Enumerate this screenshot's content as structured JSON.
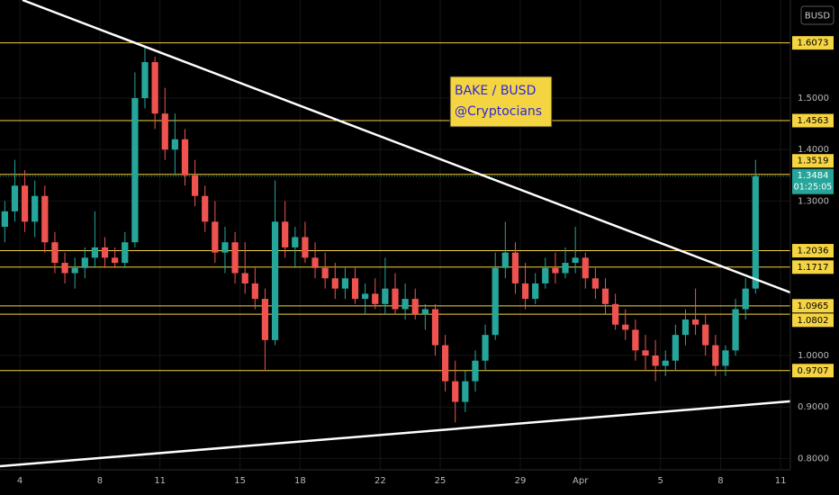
{
  "chart_data": {
    "type": "candlestick",
    "currency": "BUSD",
    "annotation": [
      "BAKE / BUSD",
      "@Cryptocians"
    ],
    "xlim": [
      3.01,
      42.49
    ],
    "xticks": [
      4,
      8,
      11,
      15,
      18,
      22,
      25,
      29,
      {
        "value": 32,
        "label": "Apr"
      },
      {
        "value": 36,
        "label": "5"
      },
      {
        "value": 39,
        "label": "8"
      },
      {
        "value": 42,
        "label": "11"
      }
    ],
    "ylim": [
      0.778,
      1.6906
    ],
    "yticks": [
      {
        "value": 0.8,
        "label": "0.8000"
      },
      {
        "value": 0.9,
        "label": "0.9000"
      },
      {
        "value": 1.0,
        "label": "1.0000"
      },
      {
        "value": 1.3,
        "label": "1.3000"
      },
      {
        "value": 1.4,
        "label": "1.4000"
      },
      {
        "value": 1.5,
        "label": "1.5000"
      }
    ],
    "grid": true,
    "up_color": "#26a69a",
    "down_color": "#ef5350",
    "level_color": "#f5d442",
    "levels": [
      1.6073,
      1.4563,
      1.3519,
      1.2036,
      1.1717,
      1.0965,
      1.0802,
      0.9707
    ],
    "last_price": 1.3484,
    "countdown": "01:25:05",
    "trendlines": [
      {
        "x": [
          4.13,
          42.49
        ],
        "y": [
          1.6906,
          1.1224
        ]
      },
      {
        "x": [
          3.01,
          42.49
        ],
        "y": [
          0.785,
          0.911
        ]
      }
    ],
    "candles": {
      "x": [
        3.25,
        3.75,
        4.25,
        4.75,
        5.25,
        5.75,
        6.25,
        6.75,
        7.25,
        7.75,
        8.25,
        8.75,
        9.25,
        9.75,
        10.25,
        10.75,
        11.25,
        11.75,
        12.25,
        12.75,
        13.25,
        13.75,
        14.25,
        14.75,
        15.25,
        15.75,
        16.25,
        16.75,
        17.25,
        17.75,
        18.25,
        18.75,
        19.25,
        19.75,
        20.25,
        20.75,
        21.25,
        21.75,
        22.25,
        22.75,
        23.25,
        23.75,
        24.25,
        24.75,
        25.25,
        25.75,
        26.25,
        26.75,
        27.25,
        27.75,
        28.25,
        28.75,
        29.25,
        29.75,
        30.25,
        30.75,
        31.25,
        31.75,
        32.25,
        32.75,
        33.25,
        33.75,
        34.25,
        34.75,
        35.25,
        35.75,
        36.25,
        36.75,
        37.25,
        37.75,
        38.25,
        38.75,
        39.25,
        39.75,
        40.25,
        40.75
      ],
      "open": [
        1.25,
        1.28,
        1.33,
        1.26,
        1.31,
        1.22,
        1.18,
        1.16,
        1.17,
        1.19,
        1.21,
        1.19,
        1.18,
        1.22,
        1.5,
        1.57,
        1.47,
        1.4,
        1.42,
        1.35,
        1.31,
        1.26,
        1.2,
        1.22,
        1.16,
        1.14,
        1.11,
        1.03,
        1.26,
        1.21,
        1.23,
        1.19,
        1.17,
        1.15,
        1.13,
        1.15,
        1.11,
        1.12,
        1.1,
        1.13,
        1.09,
        1.11,
        1.08,
        1.09,
        1.02,
        0.95,
        0.91,
        0.95,
        0.99,
        1.04,
        1.17,
        1.2,
        1.14,
        1.11,
        1.14,
        1.17,
        1.16,
        1.18,
        1.19,
        1.15,
        1.13,
        1.1,
        1.06,
        1.05,
        1.01,
        1.0,
        0.98,
        0.99,
        1.04,
        1.07,
        1.06,
        1.02,
        0.98,
        1.01,
        1.09,
        1.13
      ],
      "high": [
        1.3,
        1.38,
        1.36,
        1.34,
        1.33,
        1.24,
        1.2,
        1.19,
        1.21,
        1.28,
        1.23,
        1.21,
        1.24,
        1.55,
        1.6,
        1.58,
        1.52,
        1.47,
        1.44,
        1.38,
        1.33,
        1.3,
        1.25,
        1.24,
        1.22,
        1.17,
        1.13,
        1.34,
        1.3,
        1.25,
        1.26,
        1.22,
        1.2,
        1.18,
        1.17,
        1.17,
        1.14,
        1.15,
        1.19,
        1.16,
        1.14,
        1.13,
        1.1,
        1.1,
        1.04,
        0.99,
        0.97,
        1.01,
        1.06,
        1.2,
        1.26,
        1.22,
        1.18,
        1.16,
        1.19,
        1.2,
        1.21,
        1.25,
        1.2,
        1.17,
        1.15,
        1.12,
        1.09,
        1.07,
        1.04,
        1.03,
        1.01,
        1.06,
        1.09,
        1.13,
        1.08,
        1.04,
        1.02,
        1.11,
        1.15,
        1.38
      ],
      "low": [
        1.22,
        1.26,
        1.24,
        1.23,
        1.2,
        1.16,
        1.14,
        1.13,
        1.15,
        1.17,
        1.17,
        1.17,
        1.17,
        1.21,
        1.48,
        1.44,
        1.38,
        1.35,
        1.33,
        1.29,
        1.24,
        1.18,
        1.16,
        1.14,
        1.12,
        1.09,
        0.97,
        1.02,
        1.19,
        1.17,
        1.18,
        1.15,
        1.13,
        1.11,
        1.11,
        1.1,
        1.08,
        1.09,
        1.08,
        1.08,
        1.07,
        1.07,
        1.05,
        1.0,
        0.93,
        0.87,
        0.89,
        0.93,
        0.97,
        1.03,
        1.15,
        1.12,
        1.09,
        1.1,
        1.13,
        1.14,
        1.15,
        1.16,
        1.13,
        1.11,
        1.08,
        1.05,
        1.03,
        0.99,
        0.97,
        0.95,
        0.96,
        0.97,
        1.02,
        1.04,
        1.0,
        0.96,
        0.96,
        1.0,
        1.07,
        1.12
      ],
      "close": [
        1.28,
        1.33,
        1.26,
        1.31,
        1.22,
        1.18,
        1.16,
        1.17,
        1.19,
        1.21,
        1.19,
        1.18,
        1.22,
        1.5,
        1.57,
        1.47,
        1.4,
        1.42,
        1.35,
        1.31,
        1.26,
        1.2,
        1.22,
        1.16,
        1.14,
        1.11,
        1.03,
        1.26,
        1.21,
        1.23,
        1.19,
        1.17,
        1.15,
        1.13,
        1.15,
        1.11,
        1.12,
        1.1,
        1.13,
        1.09,
        1.11,
        1.08,
        1.09,
        1.02,
        0.95,
        0.91,
        0.95,
        0.99,
        1.04,
        1.17,
        1.2,
        1.14,
        1.11,
        1.14,
        1.17,
        1.16,
        1.18,
        1.19,
        1.15,
        1.13,
        1.1,
        1.06,
        1.05,
        1.01,
        1.0,
        0.98,
        0.99,
        1.04,
        1.07,
        1.06,
        1.02,
        0.98,
        1.01,
        1.09,
        1.13,
        1.3484
      ]
    }
  }
}
